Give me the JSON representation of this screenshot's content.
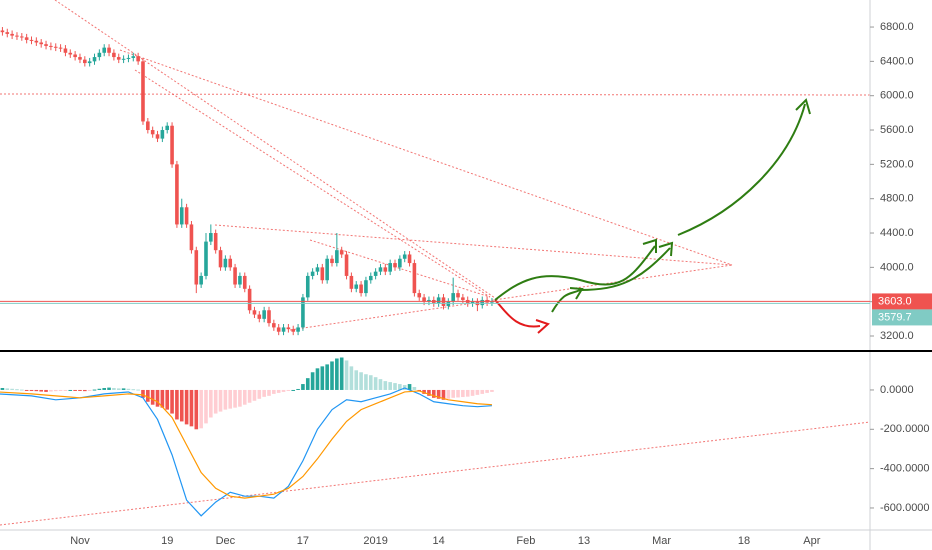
{
  "chart_data": [
    {
      "type": "candlestick",
      "x": [
        -16,
        -15,
        -14,
        -13,
        -12,
        -11,
        -10,
        -9,
        -8,
        -7,
        -6,
        -5,
        -4,
        -3,
        -2,
        -1,
        0,
        1,
        2,
        3,
        4,
        5,
        6,
        7,
        8,
        9,
        10,
        11,
        12,
        13,
        14,
        15,
        16,
        17,
        18,
        19,
        20,
        21,
        22,
        23,
        24,
        25,
        26,
        27,
        28,
        29,
        30,
        31,
        32,
        33,
        34,
        35,
        36,
        37,
        38,
        39,
        40,
        41,
        42,
        43,
        44,
        45,
        46,
        47,
        48,
        49,
        50,
        51,
        52,
        53,
        54,
        55,
        56,
        57,
        58,
        59,
        60,
        61,
        62,
        63,
        64,
        65,
        66,
        67,
        68,
        69,
        70,
        71,
        72,
        73,
        74,
        75,
        76,
        77,
        78,
        79,
        80,
        81,
        82,
        83,
        84,
        85
      ],
      "open": [
        6760,
        6740,
        6720,
        6700,
        6690,
        6680,
        6650,
        6640,
        6620,
        6600,
        6580,
        6570,
        6560,
        6550,
        6500,
        6480,
        6450,
        6420,
        6380,
        6400,
        6450,
        6500,
        6560,
        6500,
        6450,
        6420,
        6430,
        6440,
        6460,
        6400,
        5700,
        5600,
        5550,
        5500,
        5600,
        5650,
        5200,
        4500,
        4700,
        4500,
        4200,
        3800,
        3900,
        4300,
        4400,
        4200,
        4000,
        4100,
        4000,
        3800,
        3900,
        3750,
        3500,
        3450,
        3400,
        3500,
        3350,
        3300,
        3250,
        3300,
        3280,
        3250,
        3300,
        3650,
        3900,
        3950,
        4000,
        3850,
        4100,
        4050,
        4200,
        4150,
        3900,
        3750,
        3800,
        3700,
        3850,
        3900,
        3950,
        4000,
        3950,
        4050,
        4000,
        4100,
        4150,
        4050,
        3700,
        3650,
        3600,
        3620,
        3580,
        3650,
        3550,
        3600,
        3700,
        3650,
        3620,
        3580,
        3600,
        3560,
        3620,
        3590
      ],
      "high": [
        6800,
        6780,
        6760,
        6740,
        6730,
        6720,
        6690,
        6680,
        6660,
        6640,
        6620,
        6610,
        6600,
        6590,
        6540,
        6520,
        6490,
        6460,
        6440,
        6490,
        6540,
        6600,
        6600,
        6540,
        6490,
        6470,
        6480,
        6500,
        6500,
        6440,
        5740,
        5640,
        5590,
        5640,
        5690,
        5690,
        5240,
        4800,
        4740,
        4540,
        4240,
        3940,
        4400,
        4500,
        4440,
        4240,
        4140,
        4140,
        4040,
        3940,
        3940,
        3790,
        3540,
        3490,
        3540,
        3540,
        3390,
        3340,
        3340,
        3340,
        3320,
        3340,
        3690,
        3940,
        3990,
        4040,
        4040,
        4140,
        4140,
        4400,
        4240,
        4190,
        3940,
        3840,
        3840,
        3890,
        3940,
        3990,
        4040,
        4040,
        4090,
        4090,
        4140,
        4190,
        4190,
        4090,
        3740,
        3690,
        3660,
        3660,
        3690,
        3690,
        3640,
        3880,
        3740,
        3690,
        3660,
        3640,
        3640,
        3660,
        3660,
        3643
      ],
      "low": [
        6700,
        6680,
        6660,
        6650,
        6640,
        6610,
        6600,
        6580,
        6560,
        6540,
        6530,
        6520,
        6510,
        6460,
        6440,
        6410,
        6380,
        6340,
        6340,
        6360,
        6410,
        6460,
        6460,
        6410,
        6380,
        6380,
        6390,
        6400,
        6360,
        5660,
        5560,
        5510,
        5460,
        5460,
        5560,
        5160,
        4460,
        4460,
        4460,
        4160,
        3700,
        3760,
        3860,
        4260,
        4160,
        3960,
        3960,
        3960,
        3760,
        3760,
        3710,
        3460,
        3410,
        3360,
        3360,
        3310,
        3260,
        3210,
        3210,
        3240,
        3210,
        3210,
        3260,
        3610,
        3860,
        3910,
        3810,
        3810,
        4010,
        4010,
        4110,
        3860,
        3710,
        3710,
        3660,
        3660,
        3810,
        3860,
        3910,
        3910,
        3910,
        3960,
        3960,
        4060,
        4010,
        3660,
        3610,
        3560,
        3560,
        3540,
        3540,
        3510,
        3510,
        3560,
        3610,
        3580,
        3540,
        3540,
        3490,
        3520,
        3550,
        3550
      ],
      "close": [
        6740,
        6720,
        6700,
        6690,
        6680,
        6650,
        6640,
        6620,
        6600,
        6580,
        6570,
        6560,
        6550,
        6500,
        6480,
        6450,
        6420,
        6380,
        6400,
        6450,
        6500,
        6560,
        6500,
        6450,
        6420,
        6430,
        6440,
        6460,
        6400,
        5700,
        5600,
        5550,
        5500,
        5600,
        5650,
        5200,
        4500,
        4700,
        4500,
        4200,
        3800,
        3900,
        4300,
        4400,
        4200,
        4000,
        4100,
        4000,
        3800,
        3900,
        3750,
        3500,
        3450,
        3400,
        3500,
        3350,
        3300,
        3250,
        3300,
        3280,
        3250,
        3300,
        3650,
        3900,
        3950,
        4000,
        3850,
        4100,
        4050,
        4200,
        4150,
        3900,
        3750,
        3800,
        3700,
        3850,
        3900,
        3950,
        4000,
        3950,
        4050,
        4000,
        4100,
        4150,
        4050,
        3700,
        3650,
        3600,
        3620,
        3580,
        3650,
        3550,
        3600,
        3700,
        3650,
        3620,
        3580,
        3600,
        3560,
        3620,
        3590,
        3603
      ],
      "up_color": "#26a69a",
      "down_color": "#ef5350",
      "xlim": [
        -16.5,
        163
      ],
      "xticks": [
        {
          "value": 0,
          "label": "Nov"
        },
        {
          "value": 18,
          "label": "19"
        },
        {
          "value": 30,
          "label": "Dec"
        },
        {
          "value": 46,
          "label": "17"
        },
        {
          "value": 61,
          "label": "2019"
        },
        {
          "value": 74,
          "label": "14"
        },
        {
          "value": 92,
          "label": "Feb"
        },
        {
          "value": 104,
          "label": "13"
        },
        {
          "value": 120,
          "label": "Mar"
        },
        {
          "value": 137,
          "label": "18"
        },
        {
          "value": 151,
          "label": "Apr"
        }
      ],
      "ylim": [
        3037,
        7115
      ],
      "yticks": [
        {
          "value": 3200,
          "label": "3200.0"
        },
        {
          "value": 3600,
          "label": "3600.0"
        },
        {
          "value": 4000,
          "label": "4000.0"
        },
        {
          "value": 4400,
          "label": "4400.0"
        },
        {
          "value": 4800,
          "label": "4800.0"
        },
        {
          "value": 5200,
          "label": "5200.0"
        },
        {
          "value": 5600,
          "label": "5600.0"
        },
        {
          "value": 6000,
          "label": "6000.0"
        },
        {
          "value": 6400,
          "label": "6400.0"
        },
        {
          "value": 6800,
          "label": "6800.0"
        }
      ],
      "markers": [
        {
          "value": 3603,
          "label": "3603.0",
          "color": "#ef5350"
        },
        {
          "value": 3579.7,
          "label": "3579.7",
          "color": "#80cbc4"
        }
      ]
    },
    {
      "type": "macd",
      "x": [
        -16,
        -15,
        -14,
        -13,
        -12,
        -11,
        -10,
        -9,
        -8,
        -7,
        -6,
        -5,
        -4,
        -3,
        -2,
        -1,
        0,
        1,
        2,
        3,
        4,
        5,
        6,
        7,
        8,
        9,
        10,
        11,
        12,
        13,
        14,
        15,
        16,
        17,
        18,
        19,
        20,
        21,
        22,
        23,
        24,
        25,
        26,
        27,
        28,
        29,
        30,
        31,
        32,
        33,
        34,
        35,
        36,
        37,
        38,
        39,
        40,
        41,
        42,
        43,
        44,
        45,
        46,
        47,
        48,
        49,
        50,
        51,
        52,
        53,
        54,
        55,
        56,
        57,
        58,
        59,
        60,
        61,
        62,
        63,
        64,
        65,
        66,
        67,
        68,
        69,
        70,
        71,
        72,
        73,
        74,
        75,
        76,
        77,
        78,
        79,
        80,
        81,
        82,
        83,
        84,
        85
      ],
      "histogram": [
        10,
        8,
        6,
        4,
        2,
        -2,
        -4,
        -6,
        -8,
        -10,
        -8,
        -6,
        -4,
        -2,
        0,
        -2,
        -4,
        -6,
        -4,
        2,
        6,
        10,
        12,
        10,
        8,
        8,
        6,
        4,
        2,
        -40,
        -60,
        -75,
        -85,
        -90,
        -100,
        -120,
        -150,
        -160,
        -175,
        -185,
        -200,
        -195,
        -170,
        -140,
        -120,
        -110,
        -100,
        -95,
        -90,
        -85,
        -75,
        -65,
        -55,
        -45,
        -35,
        -30,
        -20,
        -15,
        -10,
        -5,
        0,
        5,
        30,
        60,
        90,
        110,
        120,
        130,
        145,
        160,
        165,
        150,
        120,
        100,
        90,
        80,
        75,
        65,
        55,
        45,
        40,
        35,
        30,
        25,
        30,
        15,
        -5,
        -20,
        -30,
        -40,
        -45,
        -50,
        -45,
        -40,
        -38,
        -36,
        -34,
        -30,
        -25,
        -20,
        -15,
        -10
      ],
      "histogram_colors": [
        "#26a69a",
        "#b2dfdb",
        "#ef5350",
        "#ffcdd2"
      ],
      "lines": [
        {
          "color": "#2196f3",
          "x": [
            -17,
            -10,
            -5,
            0,
            5,
            10,
            13,
            16,
            19,
            22,
            25,
            28,
            31,
            34,
            37,
            40,
            43,
            46,
            49,
            52,
            55,
            58,
            61,
            64,
            67,
            70,
            73,
            76,
            79,
            82,
            85
          ],
          "values": [
            -20,
            -30,
            -50,
            -40,
            -20,
            -10,
            -40,
            -150,
            -330,
            -560,
            -640,
            -570,
            -520,
            -540,
            -540,
            -550,
            -490,
            -360,
            -200,
            -100,
            -50,
            -60,
            -40,
            -20,
            10,
            -20,
            -60,
            -70,
            -80,
            -85,
            -80
          ]
        },
        {
          "color": "#ff9800",
          "x": [
            -17,
            -10,
            -5,
            0,
            5,
            10,
            13,
            16,
            19,
            22,
            25,
            28,
            31,
            34,
            37,
            40,
            43,
            46,
            49,
            52,
            55,
            58,
            61,
            64,
            67,
            70,
            73,
            76,
            79,
            82,
            85
          ],
          "values": [
            -10,
            -20,
            -30,
            -40,
            -30,
            -20,
            -25,
            -60,
            -140,
            -280,
            -420,
            -500,
            -540,
            -550,
            -540,
            -530,
            -500,
            -440,
            -350,
            -250,
            -160,
            -100,
            -70,
            -40,
            -10,
            -5,
            -30,
            -50,
            -60,
            -70,
            -75
          ]
        }
      ],
      "ylim": [
        -712,
        193
      ],
      "yticks": [
        {
          "value": 0,
          "label": "0.0000"
        },
        {
          "value": -200,
          "label": "-200.0000"
        },
        {
          "value": -400,
          "label": "-400.0000"
        },
        {
          "value": -600,
          "label": "-600.0000"
        }
      ]
    }
  ]
}
